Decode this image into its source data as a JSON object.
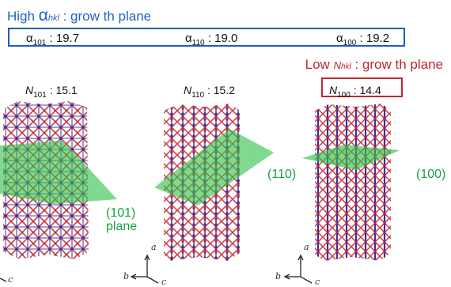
{
  "header": {
    "prefix": "High ",
    "symbol": "α",
    "subscript": "hkl",
    "suffix": " : grow th plane"
  },
  "alpha_values": [
    {
      "symbol": "α",
      "index": "101",
      "value": " : 19.7"
    },
    {
      "symbol": "α",
      "index": "110",
      "value": " : 19.0"
    },
    {
      "symbol": "α",
      "index": "100",
      "value": " : 19.2"
    }
  ],
  "low": {
    "prefix": "Low ",
    "symbol": "N",
    "subscript": "hkl",
    "suffix": " : grow th plane"
  },
  "n_values": [
    {
      "symbol": "N",
      "index": "101",
      "value": " : 15.1"
    },
    {
      "symbol": "N",
      "index": "110",
      "value": " : 15.2"
    },
    {
      "symbol": "N",
      "index": "100",
      "value": " : 14.4"
    }
  ],
  "planes": [
    {
      "label": "(101)",
      "sublabel": "plane"
    },
    {
      "label": "(110)"
    },
    {
      "label": "(100)"
    }
  ],
  "axes": {
    "a": "a",
    "b": "b",
    "c": "c"
  },
  "colors": {
    "blue": "#1f63c9",
    "red": "#c0262d",
    "green": "#19a04a"
  }
}
